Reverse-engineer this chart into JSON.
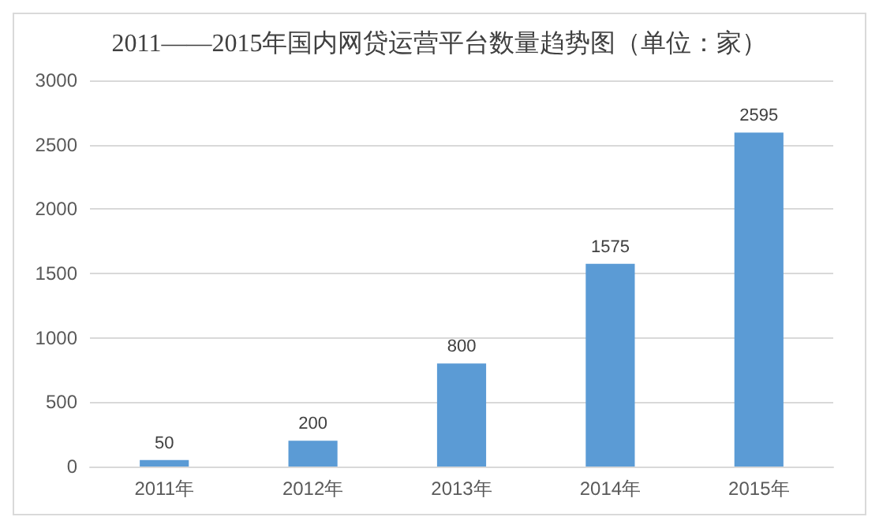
{
  "chart_data": {
    "type": "bar",
    "title": "2011——2015年国内网贷运营平台数量趋势图（单位：家）",
    "categories": [
      "2011年",
      "2012年",
      "2013年",
      "2014年",
      "2015年"
    ],
    "values": [
      50,
      200,
      800,
      1575,
      2595
    ],
    "color": "#5b9bd5",
    "ylim": [
      0,
      3000
    ],
    "yticks": [
      0,
      500,
      1000,
      1500,
      2000,
      2500,
      3000
    ],
    "grid": "y",
    "data_labels": true
  }
}
